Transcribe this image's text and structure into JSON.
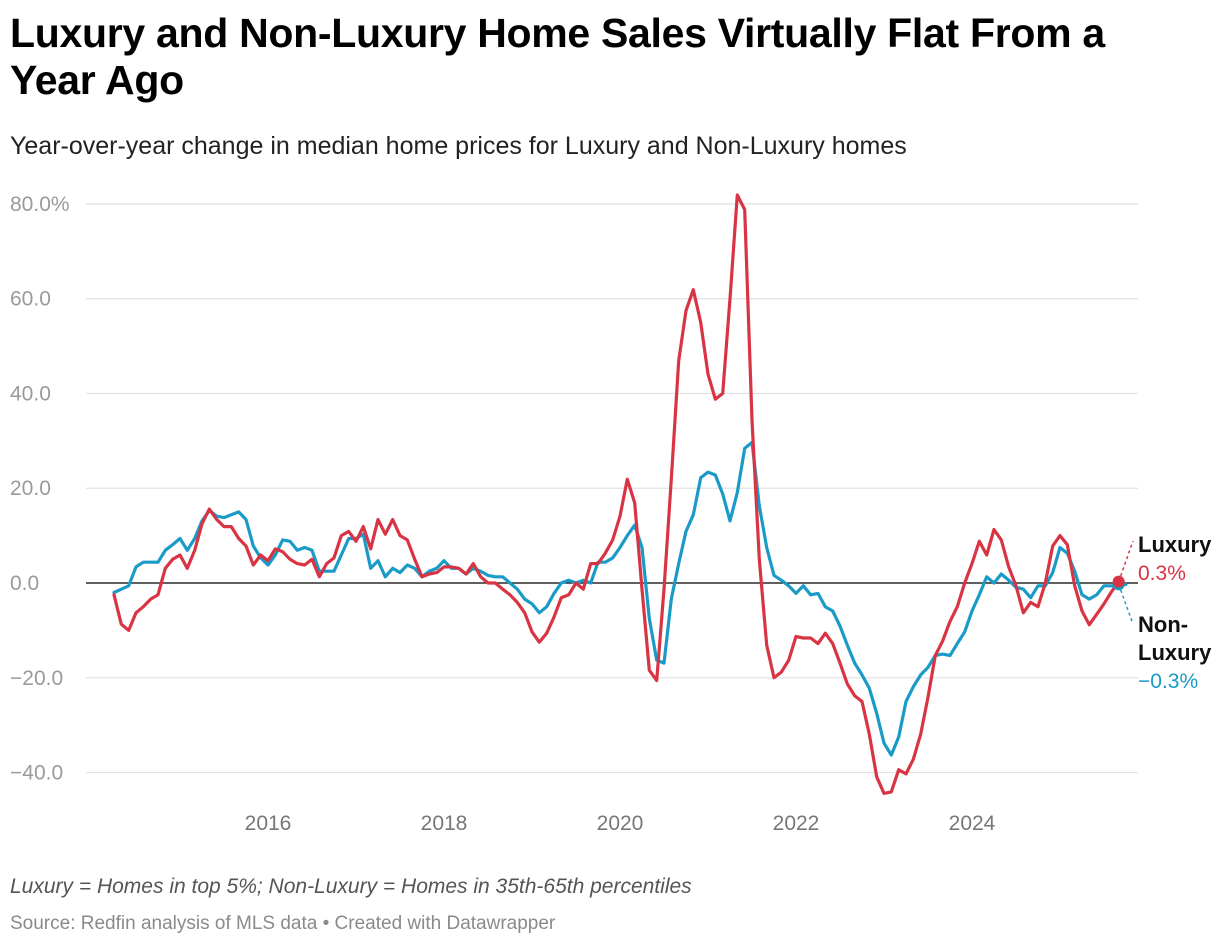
{
  "title": "Luxury and Non-Luxury Home Sales Virtually Flat From a Year Ago",
  "subtitle": "Year-over-year change in median home prices for Luxury and Non-Luxury homes",
  "note": "Luxury = Homes in top 5%; Non-Luxury = Homes in 35th-65th percentiles",
  "source": "Source: Redfin analysis of MLS data • Created with Datawrapper",
  "labels": {
    "luxury_name_1": "Luxury",
    "luxury_value": "0.3%",
    "nonlux_name_1": "Non-",
    "nonlux_name_2": "Luxury",
    "nonlux_value": "−0.3%"
  },
  "colors": {
    "luxury": "#d93444",
    "nonluxury": "#1a9bc7",
    "grid": "#e2e2e2",
    "zero": "#000000"
  },
  "chart_data": {
    "type": "line",
    "title": "Luxury and Non-Luxury Home Sales Virtually Flat From a Year Ago",
    "subtitle": "Year-over-year change in median home prices for Luxury and Non-Luxury homes",
    "xlabel": "",
    "ylabel": "",
    "x_unit": "decimal year (monthly)",
    "x_start": 2014.25,
    "x_step_months": 1,
    "xlim": [
      2014.25,
      2025.75
    ],
    "ylim": [
      -45,
      80
    ],
    "y_ticks": [
      80,
      60,
      40,
      20,
      0,
      -20,
      -40
    ],
    "y_tick_labels": [
      "80.0%",
      "60.0",
      "40.0",
      "20.0",
      "0.0",
      "−20.0",
      "−40.0"
    ],
    "x_ticks": [
      2016,
      2018,
      2020,
      2022,
      2024
    ],
    "x_tick_labels": [
      "2016",
      "2018",
      "2020",
      "2022",
      "2024"
    ],
    "grid": true,
    "legend": "direct labels at right end",
    "series": [
      {
        "name": "Luxury",
        "end_label": "0.3%",
        "values": [
          -2.5,
          -8.7,
          -10,
          -6.3,
          -5,
          -3.4,
          -2.5,
          3.1,
          5,
          5.9,
          3.1,
          6.9,
          12.5,
          15.6,
          13.4,
          11.9,
          11.9,
          9.4,
          7.8,
          3.8,
          5.9,
          4.7,
          7.2,
          6.6,
          5,
          4.1,
          3.8,
          5,
          1.3,
          4.1,
          5.3,
          10,
          10.9,
          8.8,
          11.9,
          7.2,
          13.4,
          10.3,
          13.4,
          10,
          9.1,
          5,
          1.3,
          1.9,
          2.2,
          3.4,
          3.4,
          3.1,
          1.9,
          4.1,
          1.3,
          0,
          0,
          -1.3,
          -2.5,
          -4.1,
          -6.3,
          -10.3,
          -12.5,
          -10.6,
          -7.2,
          -3.1,
          -2.5,
          0,
          -1.3,
          4.1,
          4.1,
          6.3,
          9.1,
          14.1,
          21.9,
          16.9,
          -1.3,
          -18.4,
          -20.6,
          -1.3,
          21.9,
          46.9,
          57.5,
          61.9,
          55,
          44.1,
          38.8,
          40,
          60,
          81.9,
          78.8,
          34.4,
          5,
          -13.1,
          -20,
          -18.8,
          -16.3,
          -11.3,
          -11.6,
          -11.6,
          -12.8,
          -10.6,
          -12.8,
          -16.9,
          -21.3,
          -23.8,
          -25,
          -31.9,
          -40.9,
          -44.4,
          -44.1,
          -39.4,
          -40.3,
          -37.2,
          -31.9,
          -24.1,
          -15.3,
          -12.2,
          -8.1,
          -5,
          0,
          4.1,
          8.8,
          5.9,
          11.3,
          9.1,
          3.4,
          -0.6,
          -6.3,
          -4.1,
          -5,
          0,
          7.8,
          10,
          8.1,
          -0.6,
          -5.9,
          -8.8,
          -6.6,
          -4.4,
          -1.9,
          0.3
        ]
      },
      {
        "name": "Non-Luxury",
        "end_label": "−0.3%",
        "values": [
          -2,
          -1.3,
          -0.6,
          3.4,
          4.4,
          4.4,
          4.4,
          6.9,
          8.1,
          9.4,
          6.9,
          9.4,
          13.1,
          15.3,
          14.1,
          13.8,
          14.4,
          15,
          13.4,
          7.8,
          5.3,
          3.8,
          5.9,
          9.1,
          8.8,
          6.9,
          7.5,
          6.9,
          2.5,
          2.5,
          2.5,
          5.9,
          9.4,
          9.4,
          10.3,
          3.1,
          4.7,
          1.3,
          3.1,
          2.2,
          3.8,
          3.1,
          1.3,
          2.5,
          3.1,
          4.7,
          3.1,
          3.1,
          1.9,
          3.1,
          2.5,
          1.6,
          1.3,
          1.3,
          0,
          -1.3,
          -3.4,
          -4.4,
          -6.3,
          -5,
          -2.2,
          0,
          0.6,
          0,
          0.6,
          0,
          4.4,
          4.4,
          5.3,
          7.5,
          10,
          12.2,
          7.5,
          -7.5,
          -16.3,
          -16.9,
          -3.4,
          4.1,
          10.9,
          14.4,
          22.2,
          23.4,
          22.8,
          18.8,
          13.1,
          19.1,
          28.4,
          29.7,
          16.3,
          7.5,
          1.6,
          0.6,
          -0.6,
          -2.2,
          -0.6,
          -2.5,
          -2.2,
          -5,
          -5.9,
          -9.1,
          -13.1,
          -16.9,
          -19.4,
          -22.2,
          -27.5,
          -33.8,
          -36.3,
          -32.5,
          -25,
          -21.9,
          -19.4,
          -17.8,
          -15.3,
          -15,
          -15.3,
          -12.8,
          -10.3,
          -5.9,
          -2.5,
          1.3,
          0,
          1.9,
          0.6,
          -0.9,
          -1.3,
          -3.1,
          -0.6,
          -0.6,
          2.2,
          7.5,
          6.3,
          2.5,
          -2.5,
          -3.4,
          -2.5,
          -0.6,
          -0.6,
          -0.6,
          -0.3
        ]
      }
    ]
  }
}
